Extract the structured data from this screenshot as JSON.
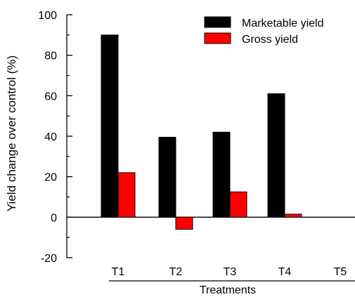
{
  "chart_data": {
    "type": "bar",
    "title": "",
    "categories": [
      "T1",
      "T2",
      "T3",
      "T4",
      "T5"
    ],
    "series": [
      {
        "name": "Marketable yield",
        "color": "#000000",
        "values": [
          90,
          39.5,
          42,
          61,
          0
        ]
      },
      {
        "name": "Gross yield",
        "color": "#ff0000",
        "values": [
          22,
          -6,
          12.5,
          1.5,
          0
        ]
      }
    ],
    "xlabel": "Treatments",
    "ylabel": "Yield change over control (%)",
    "ylim": [
      -20,
      100
    ],
    "yticks": [
      -20,
      0,
      20,
      40,
      60,
      80,
      100
    ],
    "grid": false,
    "legend_position": "top-right",
    "zero_line": true
  }
}
